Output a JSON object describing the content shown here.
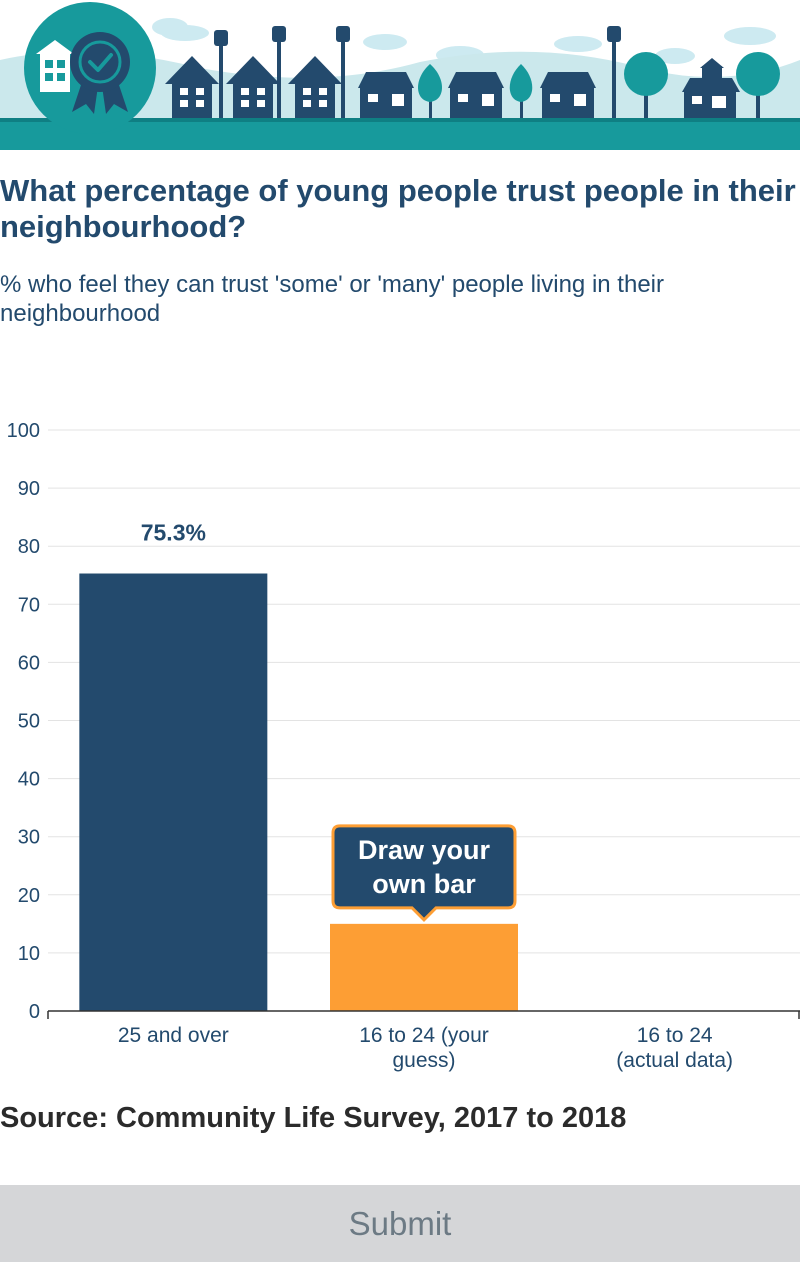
{
  "header_icon": "award-badge-icon",
  "title": "What percentage of young people trust people in their neighbourhood?",
  "subtitle": "% who feel they can trust 'some' or 'many' people living in their neighbourhood",
  "chart_data": {
    "type": "bar",
    "categories": [
      [
        "25 and over"
      ],
      [
        "16 to 24 (your",
        "guess)"
      ],
      [
        "16 to 24",
        "(actual data)"
      ]
    ],
    "values": [
      75.3,
      15,
      null
    ],
    "value_labels": [
      "75.3%",
      "",
      ""
    ],
    "bar_colors": [
      "#234a6d",
      "#fd9e34",
      "#234a6d"
    ],
    "ylim": [
      0,
      100
    ],
    "yticks": [
      0,
      10,
      20,
      30,
      40,
      50,
      60,
      70,
      80,
      90,
      100
    ],
    "grid": true,
    "draw_prompt": [
      "Draw your",
      "own bar"
    ]
  },
  "source": "Source: Community Life Survey, 2017 to 2018",
  "submit_label": "Submit",
  "colors": {
    "navy": "#234a6d",
    "orange": "#fd9e34",
    "teal": "#179a9c",
    "sky": "#cbe8ec"
  }
}
